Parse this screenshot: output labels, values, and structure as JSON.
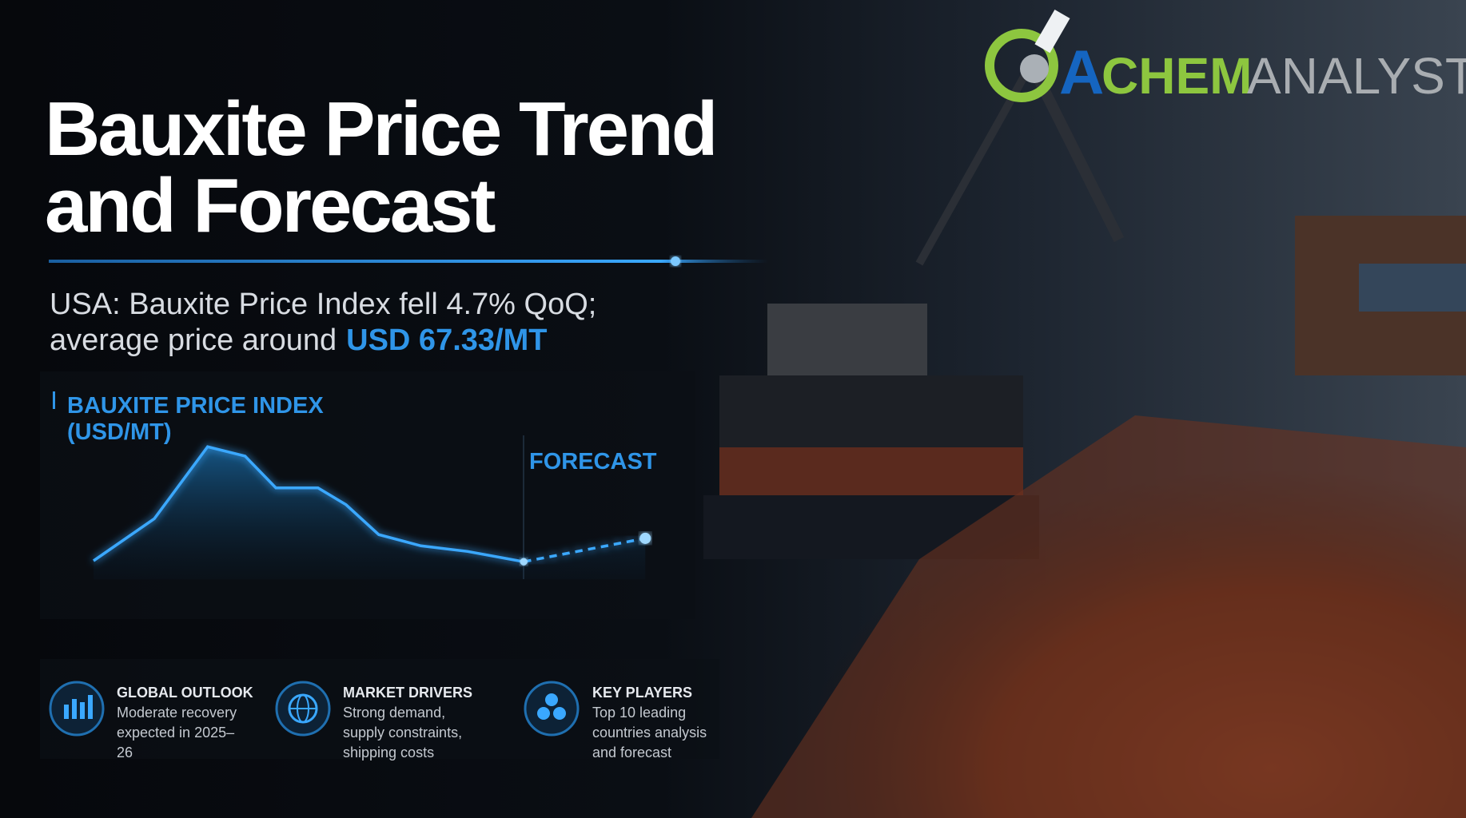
{
  "header": {
    "title_lines": [
      "Bauxite Price Trend",
      "and Forecast"
    ],
    "subtitle_line1": "USA: Bauxite Price Index fell 4.7% QoQ;",
    "subtitle_line2": "average price around",
    "subtitle_highlight": "USD 67.33/MT"
  },
  "logo": {
    "mark": "A",
    "first": "CHEM",
    "second": "ANALYST"
  },
  "chart_panel": {
    "label_lines": [
      "BAUXITE PRICE INDEX",
      "(USD/MT)"
    ],
    "forecast_label": "FORECAST"
  },
  "cards": [
    {
      "title": "GLOBAL OUTLOOK",
      "lines": [
        "Moderate recovery",
        "expected in 2025–",
        "26"
      ]
    },
    {
      "title": "MARKET DRIVERS",
      "lines": [
        "Strong demand,",
        "supply constraints,",
        "shipping costs"
      ]
    },
    {
      "title": "KEY PLAYERS",
      "lines": [
        "Top 10 leading",
        "countries analysis",
        "and forecast"
      ]
    }
  ]
}
